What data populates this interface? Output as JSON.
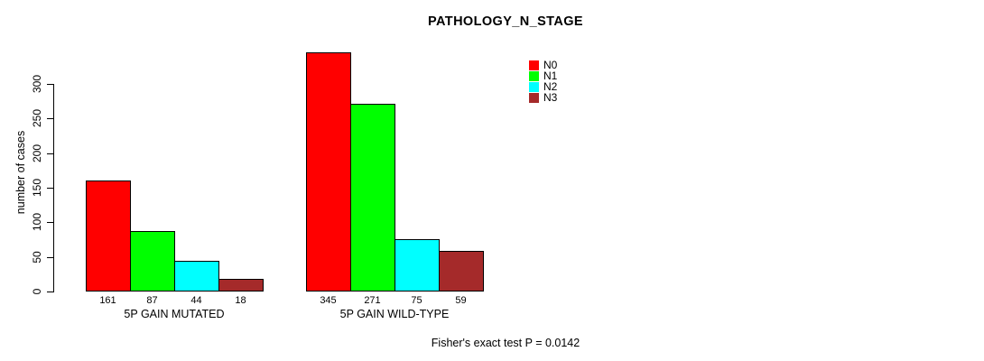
{
  "chart_data": {
    "type": "bar",
    "title": "PATHOLOGY_N_STAGE",
    "ylabel": "number of cases",
    "xlabel": "",
    "yticks": [
      0,
      50,
      100,
      150,
      200,
      250,
      300
    ],
    "ylim": [
      0,
      345
    ],
    "grid": false,
    "legend_position": "top-right",
    "categories": [
      "5P GAIN MUTATED",
      "5P GAIN WILD-TYPE"
    ],
    "series": [
      {
        "name": "N0",
        "color": "#ff0000",
        "values": [
          161,
          345
        ]
      },
      {
        "name": "N1",
        "color": "#00ff00",
        "values": [
          87,
          271
        ]
      },
      {
        "name": "N2",
        "color": "#00ffff",
        "values": [
          44,
          75
        ]
      },
      {
        "name": "N3",
        "color": "#a52a2a",
        "values": [
          18,
          59
        ]
      }
    ],
    "bar_value_labels": true,
    "footnote": "Fisher's exact test P = 0.0142"
  },
  "colors": {
    "background": "#ffffff",
    "axis": "#000000",
    "text": "#000000"
  }
}
